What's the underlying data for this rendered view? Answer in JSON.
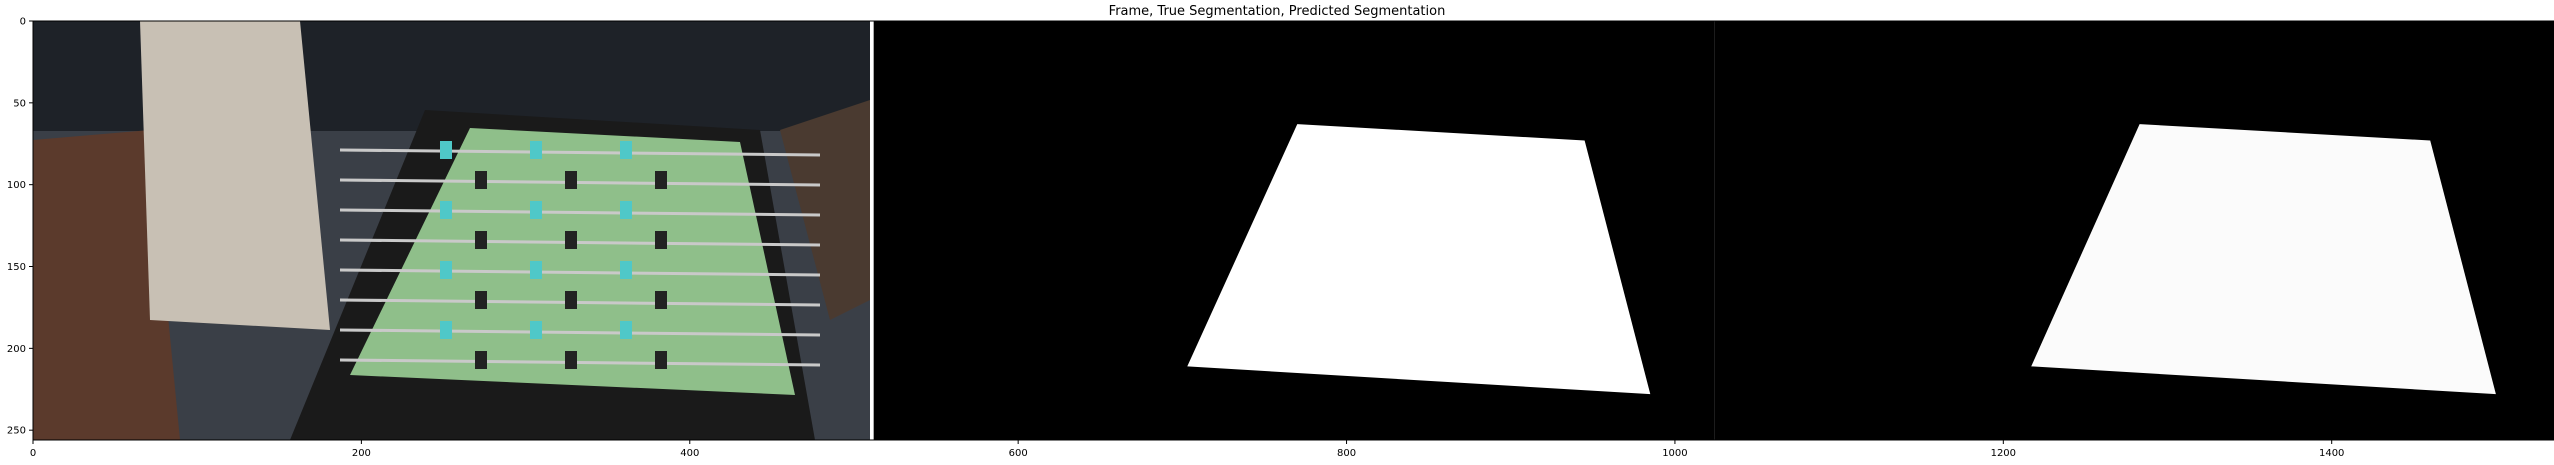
{
  "chart_data": {
    "type": "image",
    "title": "Frame, True Segmentation, Predicted Segmentation",
    "panels": [
      "Frame",
      "True Segmentation",
      "Predicted Segmentation"
    ],
    "xlim": [
      0,
      1536
    ],
    "ylim": [
      256,
      0
    ],
    "xticks": [
      0,
      200,
      400,
      600,
      800,
      1000,
      1200,
      1400
    ],
    "yticks": [
      0,
      50,
      100,
      150,
      200,
      250
    ],
    "true_mask_quad": [
      [
        770,
        63
      ],
      [
        945,
        73
      ],
      [
        985,
        228
      ],
      [
        703,
        211
      ]
    ],
    "pred_mask_quad": [
      [
        1283,
        63
      ],
      [
        1460,
        73
      ],
      [
        1500,
        228
      ],
      [
        1217,
        211
      ]
    ],
    "colors": {
      "background": "#000000",
      "mask": "#ffffff",
      "table_green": "#8fbf8a",
      "frame_bg": "#3a3f47"
    }
  }
}
